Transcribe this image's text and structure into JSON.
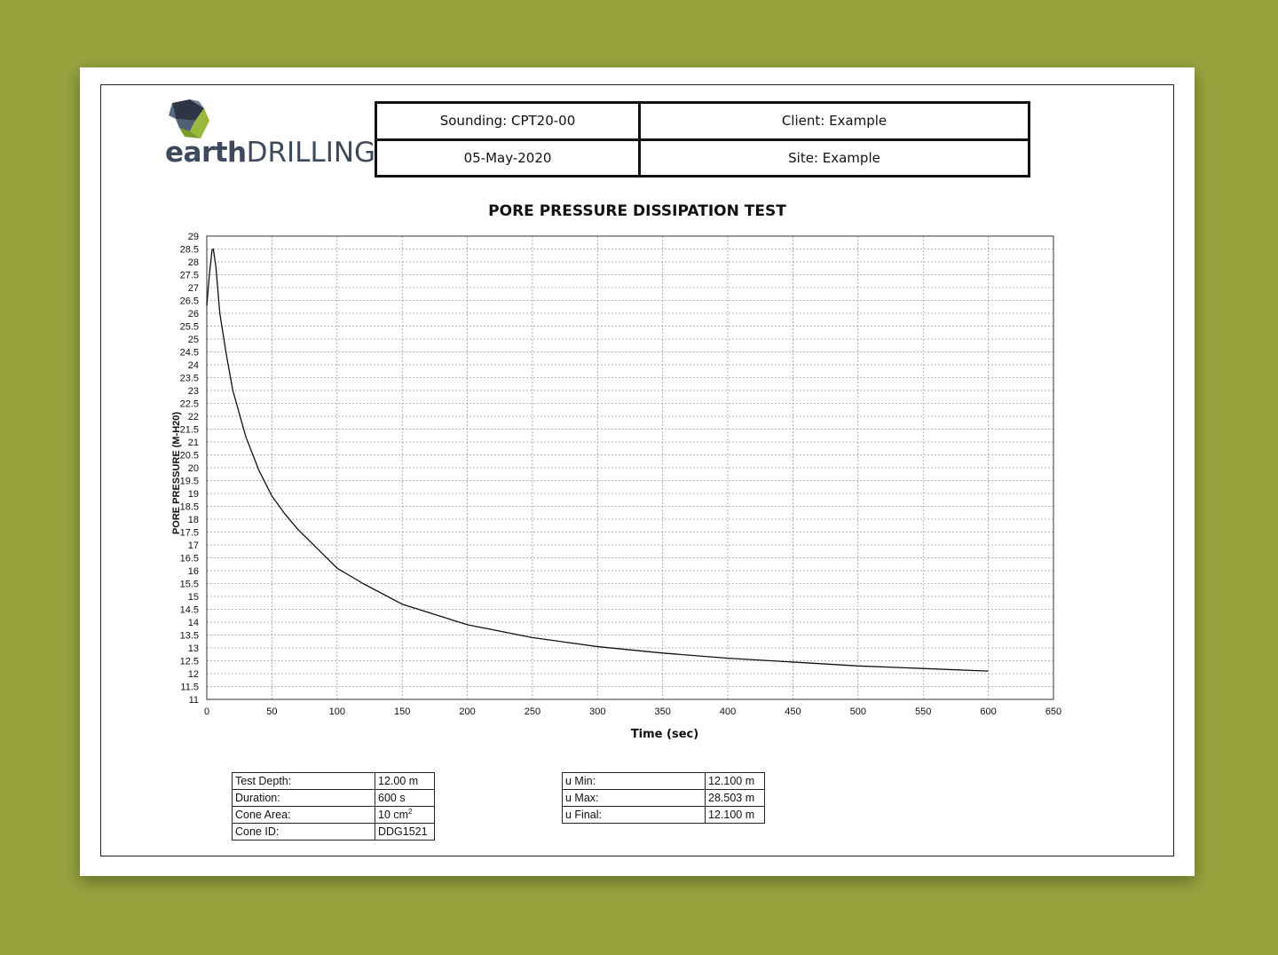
{
  "header": {
    "sounding": "Sounding: CPT20-00",
    "client": "Client: Example",
    "date": "05-May-2020",
    "site": "Site: Example"
  },
  "logo": {
    "word1": "earth",
    "word2": "DRILLING"
  },
  "chart_data": {
    "type": "line",
    "title": "PORE PRESSURE DISSIPATION TEST",
    "xlabel": "Time (sec)",
    "ylabel": "PORE PRESSURE (M-H20)",
    "xlim": [
      0,
      650
    ],
    "ylim": [
      11,
      29
    ],
    "x_ticks": [
      "0",
      "50",
      "100",
      "150",
      "200",
      "250",
      "300",
      "350",
      "400",
      "450",
      "500",
      "550",
      "600",
      "650"
    ],
    "y_ticks": [
      "11",
      "11.5",
      "12",
      "12.5",
      "13",
      "13.5",
      "14",
      "14.5",
      "15",
      "15.5",
      "16",
      "16.5",
      "17",
      "17.5",
      "18",
      "18.5",
      "19",
      "19.5",
      "20",
      "20.5",
      "21",
      "21.5",
      "22",
      "22.5",
      "23",
      "23.5",
      "24",
      "24.5",
      "25",
      "25.5",
      "26",
      "26.5",
      "27",
      "27.5",
      "28",
      "28.5",
      "29"
    ],
    "grid": true,
    "series": [
      {
        "x": [
          0,
          2,
          4,
          5,
          7,
          10,
          15,
          20,
          30,
          40,
          50,
          60,
          70,
          80,
          100,
          120,
          150,
          200,
          250,
          300,
          350,
          400,
          450,
          500,
          550,
          600
        ],
        "y": [
          26.3,
          27.5,
          28.45,
          28.5,
          27.8,
          26.0,
          24.4,
          23.0,
          21.2,
          19.9,
          18.9,
          18.2,
          17.6,
          17.1,
          16.1,
          15.5,
          14.7,
          13.9,
          13.4,
          13.05,
          12.8,
          12.6,
          12.45,
          12.3,
          12.2,
          12.1
        ]
      }
    ]
  },
  "test_info": [
    {
      "label": "Test Depth:",
      "value": "12.00 m"
    },
    {
      "label": "Duration:",
      "value": "600 s"
    },
    {
      "label": "Cone Area:",
      "value": "10 cm",
      "sup": "2"
    },
    {
      "label": "Cone ID:",
      "value": "DDG1521"
    }
  ],
  "u_info": [
    {
      "label": "u Min:",
      "value": "12.100 m"
    },
    {
      "label": "u Max:",
      "value": "28.503 m"
    },
    {
      "label": "u Final:",
      "value": "12.100 m"
    }
  ],
  "colors": {
    "background": "#97a43e",
    "logo_dark": "#2d3644",
    "logo_slate": "#596b82",
    "logo_green": "#9ab83c"
  }
}
